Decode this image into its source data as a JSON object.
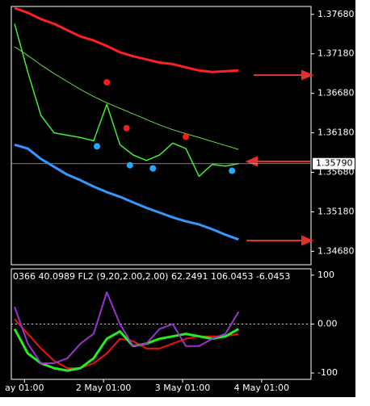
{
  "chart_data": [
    {
      "type": "line",
      "x": [
        -2,
        2,
        6,
        10,
        14,
        18,
        22,
        26,
        30,
        34,
        38,
        42,
        46,
        50,
        54,
        58,
        62,
        66
      ],
      "xlim": [
        -3,
        88
      ],
      "ylim": [
        1.3451,
        1.3778
      ],
      "yticks": [
        {
          "value": 1.3768,
          "label": "1.37680"
        },
        {
          "value": 1.3718,
          "label": "1.37180"
        },
        {
          "value": 1.3668,
          "label": "1.36680"
        },
        {
          "value": 1.3618,
          "label": "1.36180"
        },
        {
          "value": 1.3568,
          "label": "1.35680"
        },
        {
          "value": 1.3518,
          "label": "1.35180"
        },
        {
          "value": 1.3468,
          "label": "1.34680"
        }
      ],
      "current_price": {
        "value": 1.3579,
        "label": "1.35790"
      },
      "series": [
        {
          "color": "#ff2020",
          "width": 3,
          "values": [
            1.3776,
            1.377,
            1.3762,
            1.3756,
            1.3748,
            1.374,
            1.3735,
            1.3728,
            1.372,
            1.3715,
            1.3711,
            1.3707,
            1.3705,
            1.3701,
            1.3697,
            1.3695,
            1.3696,
            1.3697
          ]
        },
        {
          "color": "#3399ff",
          "width": 3,
          "values": [
            1.3603,
            1.3598,
            1.3585,
            1.3575,
            1.3565,
            1.3558,
            1.355,
            1.3543,
            1.3537,
            1.353,
            1.3523,
            1.3517,
            1.3511,
            1.3506,
            1.3502,
            1.3496,
            1.3489,
            1.3483
          ]
        },
        {
          "color": "#66dd44",
          "width": 1,
          "values": [
            1.3727,
            1.3716,
            1.3704,
            1.3693,
            1.3683,
            1.3673,
            1.3664,
            1.3656,
            1.3649,
            1.3642,
            1.3635,
            1.3628,
            1.3622,
            1.3617,
            1.3612,
            1.3607,
            1.3602,
            1.3597
          ]
        },
        {
          "color": "#44ee33",
          "width": 1.5,
          "values": [
            1.3756,
            1.3695,
            1.364,
            1.3618,
            1.3615,
            1.3612,
            1.3608,
            1.3654,
            1.3603,
            1.359,
            1.3583,
            1.359,
            1.3605,
            1.3598,
            1.3563,
            1.3578,
            1.3576,
            1.3579
          ]
        }
      ],
      "signals": [
        {
          "color": "#ff1a1a",
          "x": [
            26,
            32,
            50
          ],
          "values": [
            1.3682,
            1.3624,
            1.3613
          ]
        },
        {
          "color": "#22aaff",
          "x": [
            23,
            33,
            40,
            64
          ],
          "values": [
            1.3601,
            1.3577,
            1.3573,
            1.357
          ]
        }
      ]
    },
    {
      "type": "line",
      "title": "0366 40.0989 FL2 (9,20,2.00,2.00) 62.2491 106.0453 -6.0453",
      "x": [
        -2,
        2,
        6,
        10,
        14,
        18,
        22,
        26,
        30,
        34,
        38,
        42,
        46,
        50,
        54,
        58,
        62,
        66
      ],
      "xlim": [
        -3,
        88
      ],
      "xticks": [
        {
          "value": 1,
          "label": "ay 01:00"
        },
        {
          "value": 25,
          "label": "2 May 01:00"
        },
        {
          "value": 49,
          "label": "3 May 01:00"
        },
        {
          "value": 73,
          "label": "4 May 01:00"
        }
      ],
      "ylim": [
        -113,
        113
      ],
      "yticks": [
        100,
        {
          "value": 0,
          "label": "0.00"
        },
        -100
      ],
      "series": [
        {
          "color": "#ee1111",
          "width": 2,
          "values": [
            10,
            -20,
            -50,
            -75,
            -90,
            -90,
            -80,
            -60,
            -30,
            -35,
            -50,
            -50,
            -40,
            -30,
            -25,
            -25,
            -25,
            -20
          ]
        },
        {
          "color": "#22ee22",
          "width": 3,
          "values": [
            -10,
            -60,
            -80,
            -90,
            -95,
            -90,
            -70,
            -30,
            -15,
            -45,
            -40,
            -30,
            -25,
            -20,
            -25,
            -30,
            -25,
            -10
          ]
        },
        {
          "color": "#9933cc",
          "width": 2,
          "values": [
            35,
            -40,
            -80,
            -80,
            -70,
            -40,
            -20,
            65,
            0,
            -45,
            -40,
            -10,
            0,
            -45,
            -45,
            -30,
            -20,
            25
          ]
        }
      ]
    }
  ]
}
